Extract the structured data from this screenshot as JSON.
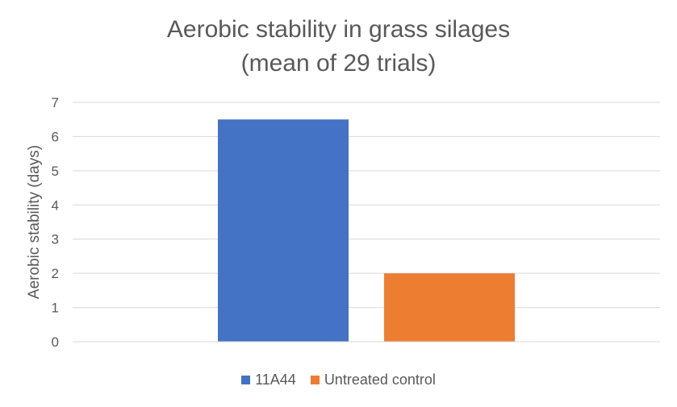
{
  "chart_data": {
    "type": "bar",
    "title_lines": [
      "Aerobic stability in grass silages",
      "(mean of 29 trials)"
    ],
    "xlabel": "",
    "ylabel": "Aerobic stability (days)",
    "ylim": [
      0,
      7
    ],
    "yticks": [
      0,
      1,
      2,
      3,
      4,
      5,
      6,
      7
    ],
    "grid": true,
    "legend_position": "bottom",
    "series": [
      {
        "name": "11A44",
        "values": [
          6.5
        ],
        "color": "#4472C4"
      },
      {
        "name": "Untreated control",
        "values": [
          2.0
        ],
        "color": "#ED7D31"
      }
    ]
  }
}
